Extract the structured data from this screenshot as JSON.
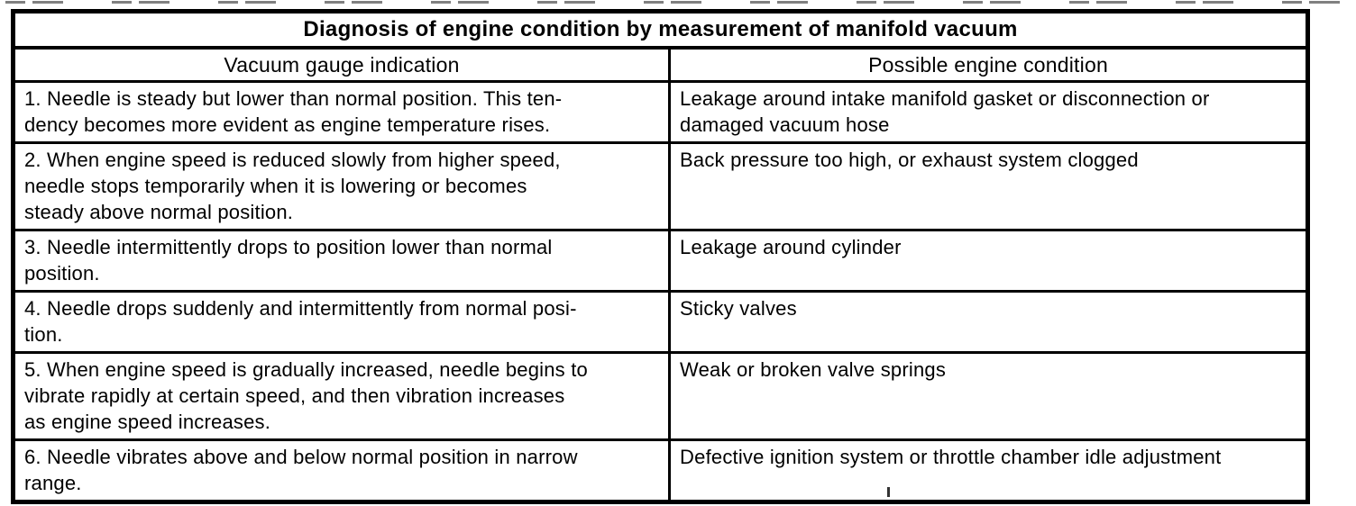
{
  "table": {
    "title": "Diagnosis of engine condition by measurement of manifold vacuum",
    "columns": [
      "Vacuum gauge indication",
      "Possible engine condition"
    ],
    "rows": [
      {
        "indication": "1. Needle is steady but lower than normal position. This ten-\ndency becomes more evident as engine temperature rises.",
        "condition": "Leakage around intake manifold gasket or disconnection or\ndamaged vacuum hose"
      },
      {
        "indication": "2. When engine speed is reduced slowly from higher speed,\nneedle stops temporarily when it is lowering or becomes\nsteady above normal position.",
        "condition": "Back pressure too high, or exhaust system clogged"
      },
      {
        "indication": "3. Needle intermittently drops to position lower than normal\nposition.",
        "condition": "Leakage around cylinder"
      },
      {
        "indication": "4. Needle drops suddenly and intermittently from normal posi-\ntion.",
        "condition": "Sticky valves"
      },
      {
        "indication": "5. When engine speed is gradually increased, needle begins to\nvibrate rapidly at certain speed, and then vibration increases\nas engine speed increases.",
        "condition": "Weak or broken valve springs"
      },
      {
        "indication": "6. Needle vibrates above and below normal position in narrow\nrange.",
        "condition": "Defective ignition system or throttle chamber idle adjustment"
      }
    ]
  }
}
